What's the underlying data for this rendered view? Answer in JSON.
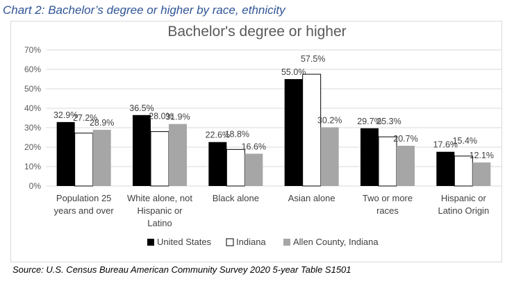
{
  "caption": "Chart 2: Bachelor’s degree or higher by race, ethnicity",
  "source": "Source: U.S. Census Bureau American Community Survey 2020 5-year Table S1501",
  "chart_data": {
    "type": "bar",
    "title": "Bachelor's degree or higher",
    "xlabel": "",
    "ylabel": "",
    "ylim": [
      0,
      70
    ],
    "yticks": [
      0,
      10,
      20,
      30,
      40,
      50,
      60,
      70
    ],
    "ytick_labels": [
      "0%",
      "10%",
      "20%",
      "30%",
      "40%",
      "50%",
      "60%",
      "70%"
    ],
    "gridlines": true,
    "legend_position": "bottom",
    "categories": [
      [
        "Population 25",
        "years and over"
      ],
      [
        "White alone, not",
        "Hispanic or",
        "Latino"
      ],
      [
        "Black alone"
      ],
      [
        "Asian alone"
      ],
      [
        "Two or more",
        "races"
      ],
      [
        "Hispanic or",
        "Latino Origin"
      ]
    ],
    "series": [
      {
        "name": "United States",
        "color": "#000000",
        "values": [
          32.9,
          36.5,
          22.6,
          55.0,
          29.7,
          17.6
        ],
        "labels": [
          "32.9%",
          "36.5%",
          "22.6%",
          "55.0%",
          "29.7%",
          "17.6%"
        ]
      },
      {
        "name": "Indiana",
        "color": "#ffffff",
        "values": [
          27.2,
          28.0,
          18.8,
          57.5,
          25.3,
          15.4
        ],
        "labels": [
          "27.2%",
          "28.0%",
          "18.8%",
          "57.5%",
          "25.3%",
          "15.4%"
        ]
      },
      {
        "name": "Allen County, Indiana",
        "color": "#a6a6a6",
        "values": [
          28.9,
          31.9,
          16.6,
          30.2,
          20.7,
          12.1
        ],
        "labels": [
          "28.9%",
          "31.9%",
          "16.6%",
          "30.2%",
          "20.7%",
          "12.1%"
        ]
      }
    ]
  }
}
